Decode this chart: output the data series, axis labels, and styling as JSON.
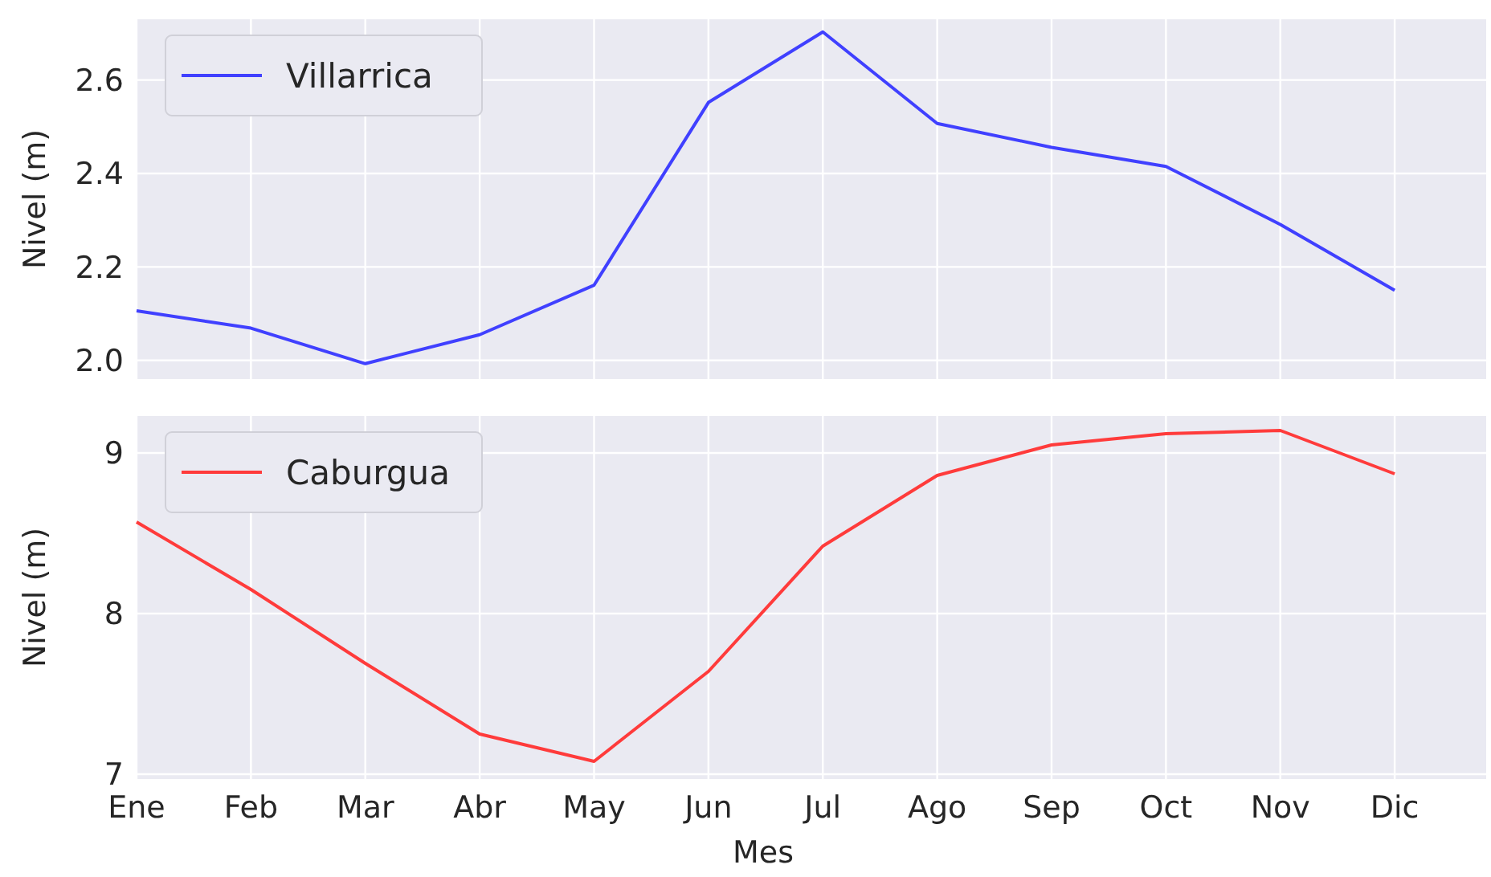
{
  "chart_data": [
    {
      "type": "line",
      "ylabel": "Nivel (m)",
      "categories": [
        null,
        null,
        null,
        null,
        null,
        null,
        null,
        null,
        null,
        null,
        null,
        null
      ],
      "ylim": [
        1.96,
        2.73
      ],
      "yticks": [
        {
          "value": 2,
          "label": "2.0"
        },
        {
          "value": 2.2,
          "label": "2.2"
        },
        {
          "value": 2.4,
          "label": "2.4"
        },
        {
          "value": 2.6,
          "label": "2.6"
        }
      ],
      "tick_labels": "y",
      "grid": true,
      "legend": "top left",
      "series": [
        {
          "name": "Villarrica",
          "color": "#4040ff",
          "values": [
            2.106,
            2.069,
            1.993,
            2.055,
            2.161,
            2.552,
            2.703,
            2.507,
            2.456,
            2.415,
            2.291,
            2.15
          ]
        }
      ]
    },
    {
      "type": "line",
      "ylabel": "Nivel (m)",
      "xlabel": "Mes",
      "categories": [
        "Ene",
        "Feb",
        "Mar",
        "Abr",
        "May",
        "Jun",
        "Jul",
        "Ago",
        "Sep",
        "Oct",
        "Nov",
        "Dic"
      ],
      "ylim": [
        6.97,
        9.23
      ],
      "yticks": [
        7,
        8,
        9
      ],
      "grid": true,
      "legend": "top left",
      "series": [
        {
          "name": "Caburgua",
          "color": "#ff3b3b",
          "values": [
            8.57,
            8.15,
            7.69,
            7.25,
            7.08,
            7.64,
            8.42,
            8.86,
            9.05,
            9.12,
            9.14,
            8.87
          ]
        }
      ]
    }
  ]
}
